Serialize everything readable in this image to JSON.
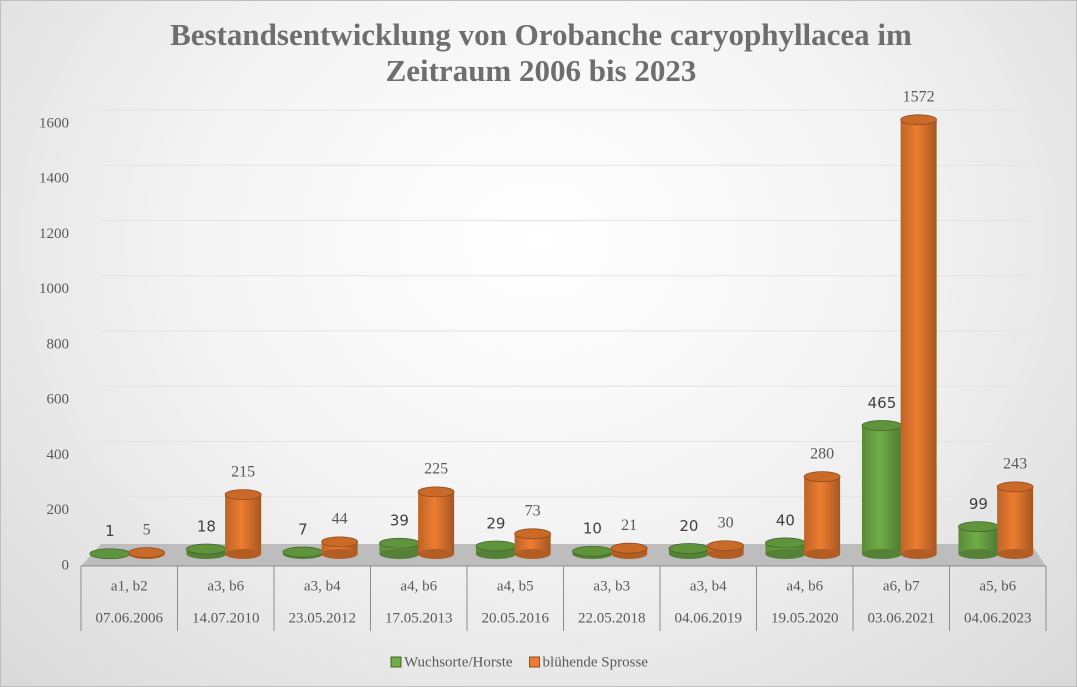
{
  "chart_data": {
    "type": "bar3d",
    "title": "Bestandsentwicklung von Orobanche caryophyllacea im Zeitraum 2006 bis 2023",
    "categories": [
      "a1, b2",
      "a3, b6",
      "a3, b4",
      "a4, b6",
      "a4, b5",
      "a3, b3",
      "a3, b4",
      "a4, b6",
      "a6, b7",
      "a5, b6"
    ],
    "dates": [
      "07.06.2006",
      "14.07.2010",
      "23.05.2012",
      "17.05.2013",
      "20.05.2016",
      "22.05.2018",
      "04.06.2019",
      "19.05.2020",
      "03.06.2021",
      "04.06.2023"
    ],
    "series": [
      {
        "name": "Wuchsorte/Horste",
        "color": "#70ad47",
        "values": [
          1,
          18,
          7,
          39,
          29,
          10,
          20,
          40,
          465,
          99
        ]
      },
      {
        "name": "blühende Sprosse",
        "color": "#ed7d31",
        "values": [
          5,
          215,
          44,
          225,
          73,
          21,
          30,
          280,
          1572,
          243
        ]
      }
    ],
    "ylim": [
      0,
      1600
    ],
    "yticks": [
      0,
      200,
      400,
      600,
      800,
      1000,
      1200,
      1400,
      1600
    ],
    "grid": true,
    "legend": "bottom"
  }
}
